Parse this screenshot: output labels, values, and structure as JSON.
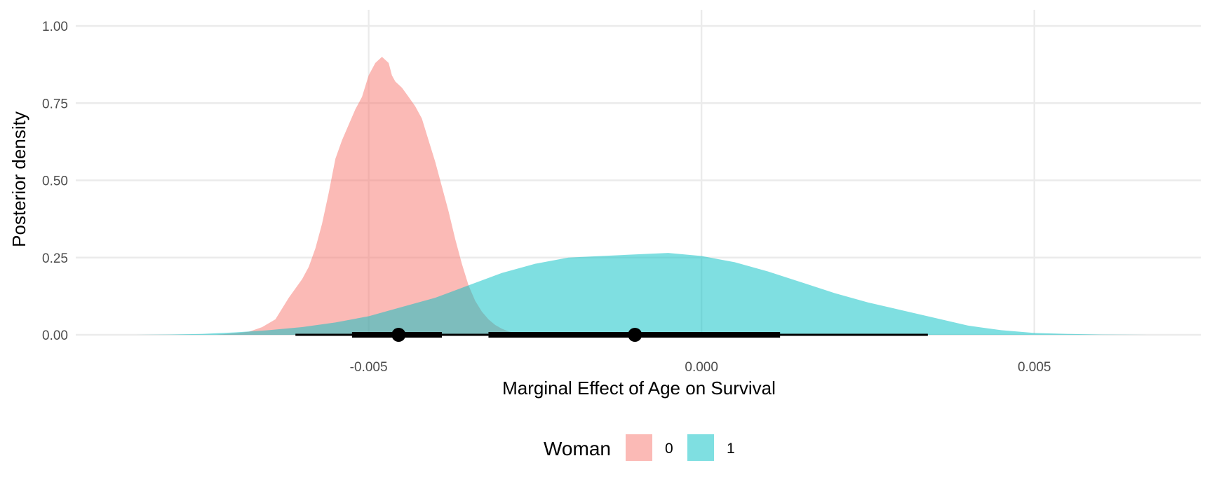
{
  "chart_data": {
    "type": "area",
    "xlabel": "Marginal Effect of Age on Survival",
    "ylabel": "Posterior density",
    "xlim": [
      -0.0094,
      0.0075
    ],
    "ylim": [
      0,
      1.0
    ],
    "x_ticks": [
      -0.005,
      0.0,
      0.005
    ],
    "x_tick_labels": [
      "-0.005",
      "0.000",
      "0.005"
    ],
    "y_ticks": [
      0.0,
      0.25,
      0.5,
      0.75,
      1.0
    ],
    "y_tick_labels": [
      "0.00",
      "0.25",
      "0.50",
      "0.75",
      "1.00"
    ],
    "grid": true,
    "legend": {
      "title": "Woman",
      "position": "bottom",
      "entries": [
        {
          "label": "0",
          "color": "#F8766D"
        },
        {
          "label": "1",
          "color": "#00BFC4"
        }
      ]
    },
    "series": [
      {
        "name": "0",
        "color": "#F8766D",
        "x": [
          -0.0073,
          -0.007,
          -0.0068,
          -0.0066,
          -0.0064,
          -0.0063,
          -0.0062,
          -0.0061,
          -0.006,
          -0.0059,
          -0.0058,
          -0.0057,
          -0.0056,
          -0.0055,
          -0.0054,
          -0.0053,
          -0.0052,
          -0.0051,
          -0.005,
          -0.0049,
          -0.0048,
          -0.0047,
          -0.00465,
          -0.0046,
          -0.0045,
          -0.0044,
          -0.0043,
          -0.0042,
          -0.0041,
          -0.004,
          -0.0039,
          -0.0038,
          -0.0037,
          -0.0036,
          -0.0035,
          -0.0034,
          -0.0033,
          -0.0032,
          -0.0031,
          -0.003,
          -0.0029,
          -0.0028,
          -0.0027,
          -0.0026,
          -0.0025,
          -0.0024,
          -0.0023
        ],
        "y": [
          0.0,
          0.005,
          0.01,
          0.025,
          0.05,
          0.085,
          0.12,
          0.15,
          0.18,
          0.22,
          0.28,
          0.36,
          0.46,
          0.57,
          0.63,
          0.68,
          0.73,
          0.77,
          0.84,
          0.88,
          0.9,
          0.88,
          0.84,
          0.82,
          0.8,
          0.77,
          0.74,
          0.7,
          0.63,
          0.56,
          0.48,
          0.4,
          0.31,
          0.23,
          0.16,
          0.11,
          0.075,
          0.05,
          0.032,
          0.02,
          0.011,
          0.006,
          0.003,
          0.0015,
          0.0007,
          0.0003,
          0.0
        ]
      },
      {
        "name": "1",
        "color": "#00BFC4",
        "x": [
          -0.0085,
          -0.008,
          -0.0075,
          -0.007,
          -0.0065,
          -0.006,
          -0.0055,
          -0.005,
          -0.0045,
          -0.004,
          -0.0035,
          -0.003,
          -0.0025,
          -0.002,
          -0.0015,
          -0.001,
          -0.0005,
          0.0,
          0.0005,
          0.001,
          0.0015,
          0.002,
          0.0025,
          0.003,
          0.0035,
          0.004,
          0.0045,
          0.005,
          0.0055,
          0.006,
          0.0067
        ],
        "y": [
          0.0,
          0.001,
          0.003,
          0.008,
          0.015,
          0.025,
          0.04,
          0.06,
          0.09,
          0.12,
          0.16,
          0.2,
          0.23,
          0.25,
          0.255,
          0.26,
          0.265,
          0.255,
          0.235,
          0.205,
          0.17,
          0.135,
          0.105,
          0.08,
          0.055,
          0.03,
          0.015,
          0.006,
          0.003,
          0.001,
          0.0
        ]
      }
    ],
    "intervals": [
      {
        "series": "0",
        "point": -0.00455,
        "inner": [
          -0.00525,
          -0.0039
        ],
        "outer": [
          -0.0061,
          -0.0032
        ]
      },
      {
        "series": "1",
        "point": -0.001,
        "inner": [
          -0.0032,
          0.00118
        ],
        "outer": [
          -0.0032,
          0.0034
        ]
      }
    ]
  }
}
